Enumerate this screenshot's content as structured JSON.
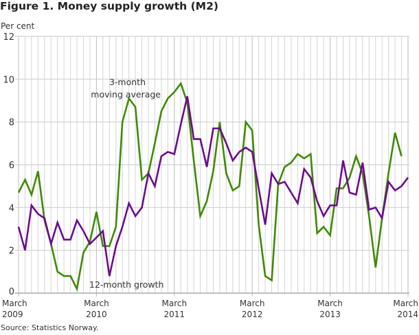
{
  "title": "Figure 1. Money supply growth (M2)",
  "source": "Source: Statistics Norway.",
  "chart_data": {
    "type": "line",
    "title": "Figure 1. Money supply growth (M2)",
    "ylabel": "Per cent",
    "ylim": [
      0,
      12
    ],
    "yticks": [
      0,
      2,
      4,
      6,
      8,
      10,
      12
    ],
    "x_start": "March 2009",
    "x_end": "March 2014",
    "frequency": "monthly",
    "xtick_labels": [
      [
        "March",
        "2009"
      ],
      [
        "March",
        "2010"
      ],
      [
        "March",
        "2011"
      ],
      [
        "March",
        "2012"
      ],
      [
        "March",
        "2013"
      ],
      [
        "March",
        "2014"
      ]
    ],
    "grid": "vertical monthly, horizontal major",
    "series": [
      {
        "name": "3-month moving average",
        "color": "#3f8a04",
        "values": [
          4.7,
          5.3,
          4.6,
          5.7,
          3.4,
          2.3,
          1.0,
          0.8,
          0.8,
          0.2,
          1.9,
          2.4,
          3.8,
          2.2,
          2.2,
          3.1,
          8.0,
          9.1,
          8.7,
          5.3,
          5.6,
          7.0,
          8.5,
          9.1,
          9.4,
          9.8,
          8.9,
          6.2,
          3.6,
          4.3,
          5.7,
          8.0,
          5.6,
          4.8,
          5.0,
          8.0,
          7.6,
          3.2,
          0.8,
          0.6,
          5.1,
          5.9,
          6.1,
          6.5,
          6.3,
          6.5,
          2.8,
          3.1,
          2.7,
          4.9,
          4.9,
          5.4,
          6.4,
          5.6,
          3.6,
          1.2,
          3.5,
          5.6,
          7.5,
          6.4,
          null
        ]
      },
      {
        "name": "12-month growth",
        "color": "#6c0b8c",
        "values": [
          3.1,
          2.0,
          4.1,
          3.7,
          3.5,
          2.3,
          3.3,
          2.5,
          2.5,
          3.4,
          2.9,
          2.3,
          2.6,
          2.9,
          0.8,
          2.2,
          3.1,
          4.2,
          3.6,
          4.0,
          5.6,
          5.0,
          6.4,
          6.6,
          6.5,
          7.9,
          9.2,
          7.2,
          7.2,
          5.9,
          7.7,
          7.7,
          7.0,
          6.2,
          6.6,
          6.8,
          6.6,
          4.9,
          3.2,
          5.6,
          5.1,
          5.2,
          4.7,
          4.2,
          5.8,
          5.4,
          4.3,
          3.6,
          4.1,
          4.1,
          6.2,
          4.7,
          4.6,
          6.1,
          3.9,
          4.0,
          3.5,
          5.2,
          4.8,
          5.0,
          5.4
        ]
      }
    ],
    "annotations": [
      "3-month\nmoving average",
      "12-month growth"
    ]
  }
}
